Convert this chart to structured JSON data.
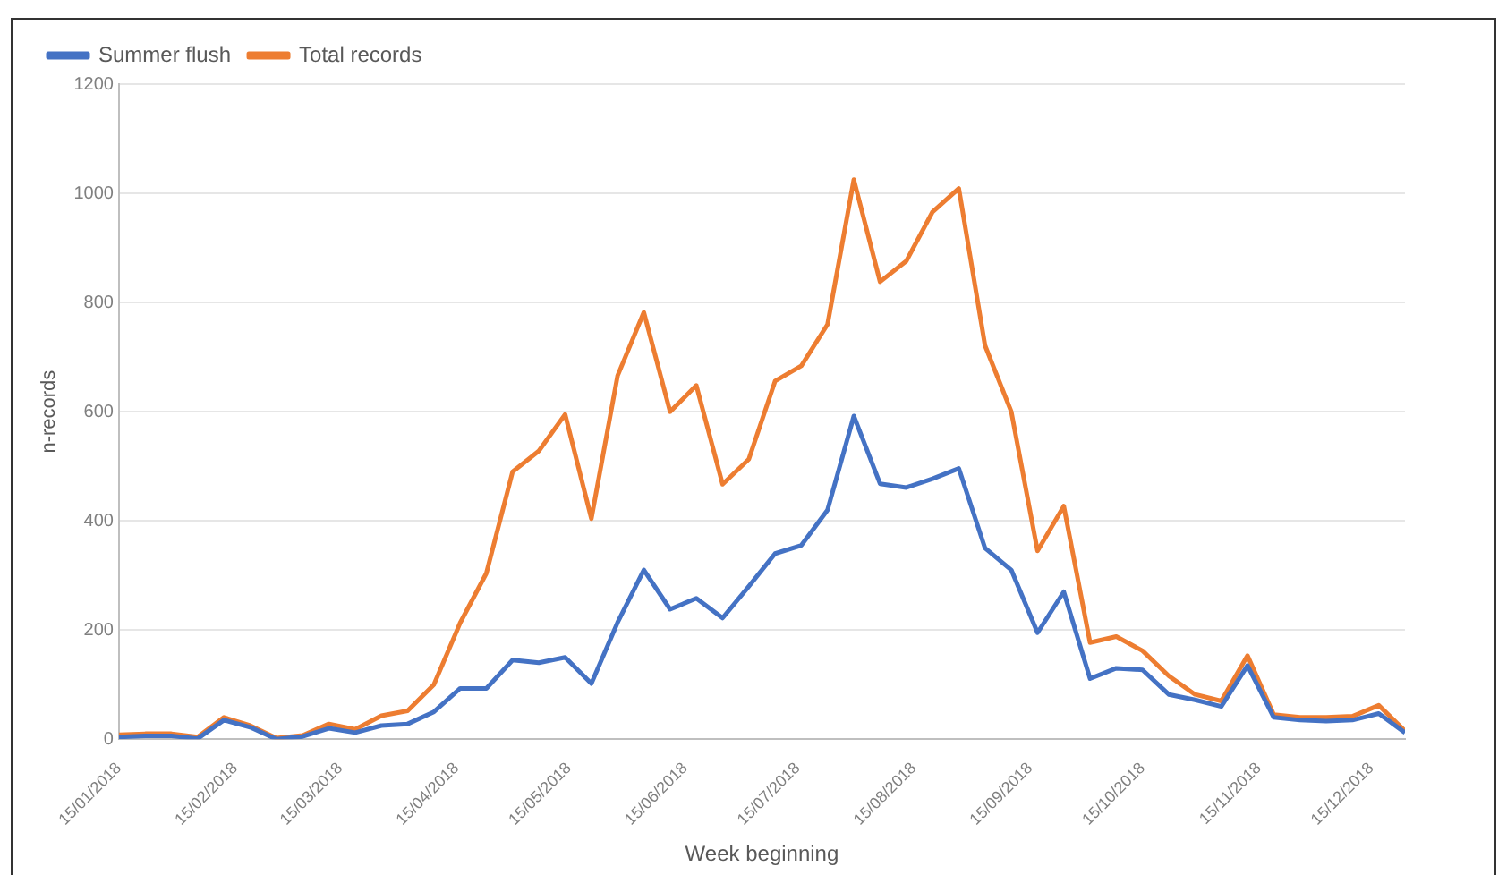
{
  "chart_data": {
    "type": "line",
    "xlabel": "Week beginning",
    "ylabel": "n-records",
    "x": [
      "2018-01-15",
      "2018-01-22",
      "2018-01-29",
      "2018-02-05",
      "2018-02-12",
      "2018-02-19",
      "2018-02-26",
      "2018-03-05",
      "2018-03-12",
      "2018-03-19",
      "2018-03-26",
      "2018-04-02",
      "2018-04-09",
      "2018-04-16",
      "2018-04-23",
      "2018-04-30",
      "2018-05-07",
      "2018-05-14",
      "2018-05-21",
      "2018-05-28",
      "2018-06-04",
      "2018-06-11",
      "2018-06-18",
      "2018-06-25",
      "2018-07-02",
      "2018-07-09",
      "2018-07-16",
      "2018-07-23",
      "2018-07-30",
      "2018-08-06",
      "2018-08-13",
      "2018-08-20",
      "2018-08-27",
      "2018-09-03",
      "2018-09-10",
      "2018-09-17",
      "2018-09-24",
      "2018-10-01",
      "2018-10-08",
      "2018-10-15",
      "2018-10-22",
      "2018-10-29",
      "2018-11-05",
      "2018-11-12",
      "2018-11-19",
      "2018-11-26",
      "2018-12-03",
      "2018-12-10",
      "2018-12-17",
      "2018-12-24"
    ],
    "series": [
      {
        "name": "Summer flush",
        "color": "#4472c4",
        "values": [
          4,
          6,
          6,
          1,
          35,
          22,
          0,
          5,
          20,
          12,
          25,
          28,
          50,
          93,
          93,
          145,
          140,
          150,
          102,
          214,
          310,
          238,
          258,
          222,
          280,
          340,
          355,
          420,
          592,
          468,
          461,
          477,
          496,
          350,
          310,
          195,
          270,
          111,
          130,
          127,
          82,
          72,
          60,
          135,
          40,
          35,
          33,
          35,
          47,
          12
        ]
      },
      {
        "name": "Total records",
        "color": "#ed7d31",
        "values": [
          8,
          10,
          10,
          4,
          40,
          25,
          2,
          7,
          28,
          18,
          43,
          52,
          100,
          213,
          304,
          490,
          528,
          595,
          404,
          666,
          782,
          600,
          648,
          467,
          513,
          656,
          684,
          760,
          1025,
          838,
          876,
          966,
          1009,
          721,
          600,
          345,
          427,
          177,
          188,
          162,
          116,
          82,
          70,
          153,
          45,
          40,
          40,
          42,
          62,
          15
        ]
      }
    ],
    "xlim": [
      "2018-01-15",
      "2018-12-24"
    ],
    "xticks": [
      {
        "value": "2018-01-15",
        "label": "15/01/2018"
      },
      {
        "value": "2018-02-15",
        "label": "15/02/2018"
      },
      {
        "value": "2018-03-15",
        "label": "15/03/2018"
      },
      {
        "value": "2018-04-15",
        "label": "15/04/2018"
      },
      {
        "value": "2018-05-15",
        "label": "15/05/2018"
      },
      {
        "value": "2018-06-15",
        "label": "15/06/2018"
      },
      {
        "value": "2018-07-15",
        "label": "15/07/2018"
      },
      {
        "value": "2018-08-15",
        "label": "15/08/2018"
      },
      {
        "value": "2018-09-15",
        "label": "15/09/2018"
      },
      {
        "value": "2018-10-15",
        "label": "15/10/2018"
      },
      {
        "value": "2018-11-15",
        "label": "15/11/2018"
      },
      {
        "value": "2018-12-15",
        "label": "15/12/2018"
      }
    ],
    "ylim": [
      0,
      1200
    ],
    "yticks": [
      0,
      200,
      400,
      600,
      800,
      1000,
      1200
    ],
    "grid": "y",
    "legend": "top left",
    "marker": "none",
    "line_style": "solid"
  }
}
